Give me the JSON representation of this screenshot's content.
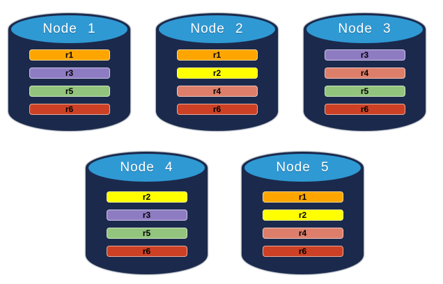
{
  "colors": {
    "canvas_background": "#ffffff",
    "cylinder_body": "#1b2a4c",
    "cylinder_top": "#2f99d4",
    "node_label_text": "#ffffff",
    "record_label_text": "#000000"
  },
  "record_colors": {
    "r1": "#ffa500",
    "r2": "#ffff00",
    "r3": "#8e7cc3",
    "r4": "#dd7e6b",
    "r5": "#93c47d",
    "r6": "#cc4125"
  },
  "nodes": [
    {
      "label": "Node 1",
      "records": [
        "r1",
        "r3",
        "r5",
        "r6"
      ]
    },
    {
      "label": "Node 2",
      "records": [
        "r1",
        "r2",
        "r4",
        "r6"
      ]
    },
    {
      "label": "Node 3",
      "records": [
        "r3",
        "r4",
        "r5",
        "r6"
      ]
    },
    {
      "label": "Node 4",
      "records": [
        "r2",
        "r3",
        "r5",
        "r6"
      ]
    },
    {
      "label": "Node 5",
      "records": [
        "r1",
        "r2",
        "r4",
        "r6"
      ]
    }
  ]
}
